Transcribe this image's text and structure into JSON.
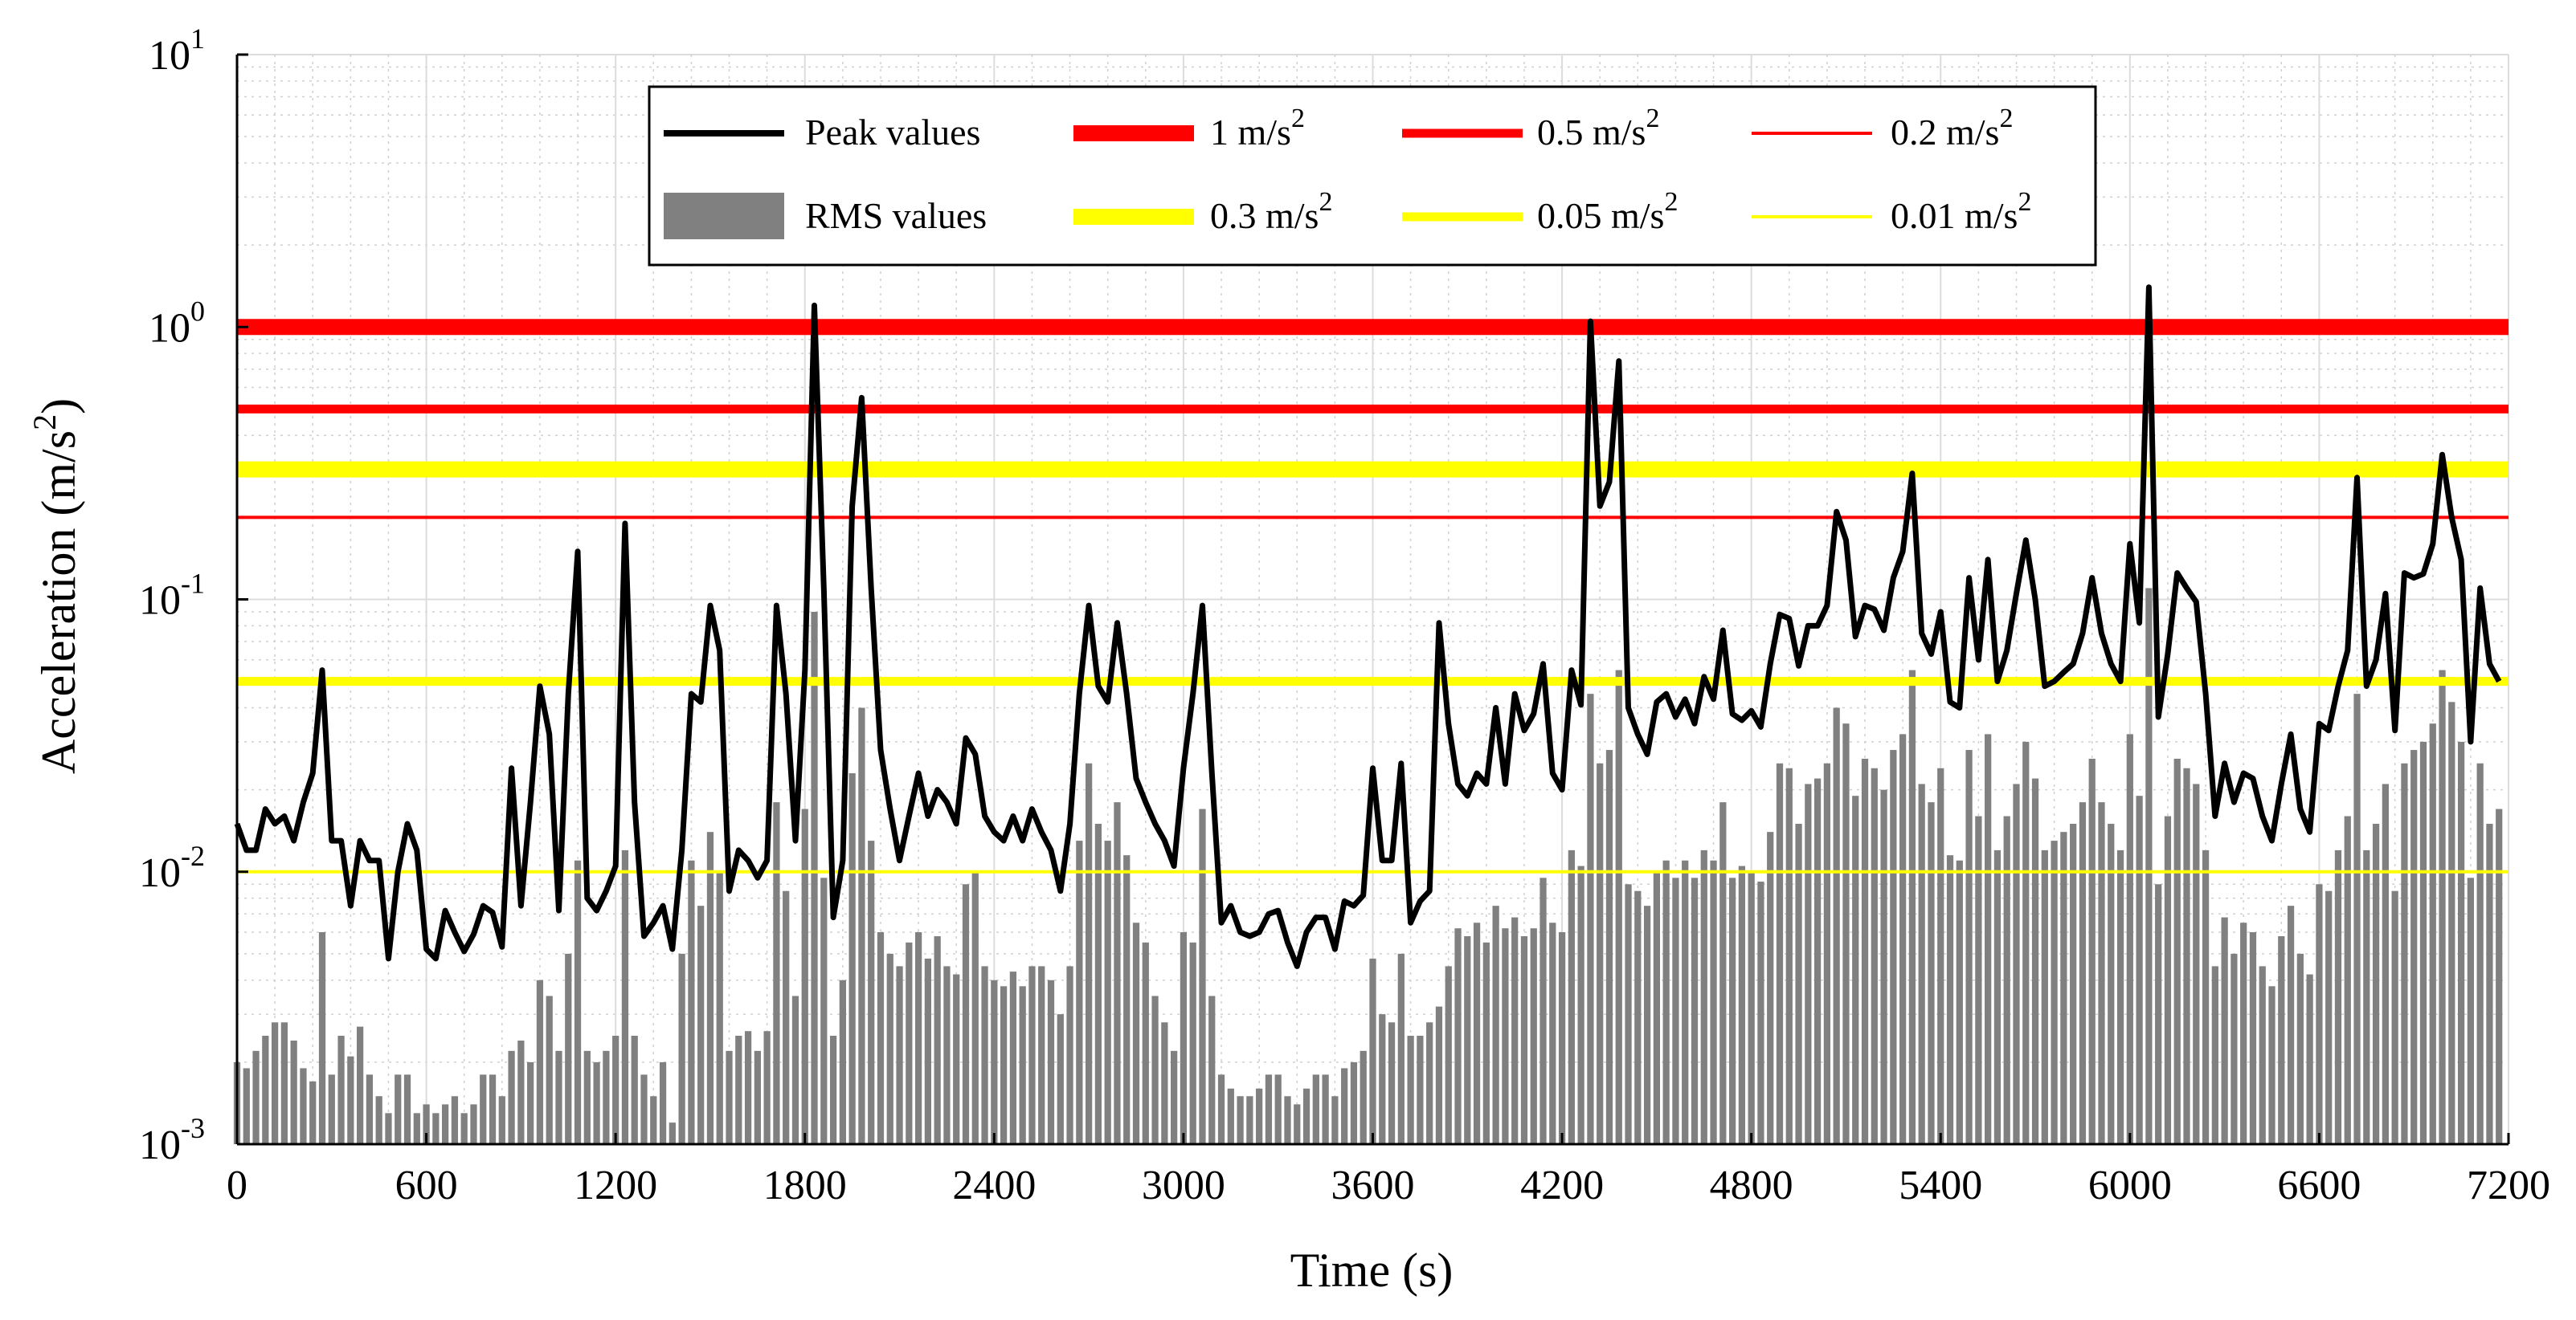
{
  "chart_data": {
    "type": "bar+line",
    "xlabel": "Time (s)",
    "ylabel": "Acceleration (m/s",
    "ylabel_sup": "2",
    "ylabel_close": ")",
    "xlim": [
      0,
      7200
    ],
    "ylim": [
      0.001,
      10
    ],
    "yscale": "log",
    "grid": true,
    "legend_position": "top",
    "x_ticks": [
      "0",
      "600",
      "1200",
      "1800",
      "2400",
      "3000",
      "3600",
      "4200",
      "4800",
      "5400",
      "6000",
      "6600",
      "7200"
    ],
    "y_ticks": [
      {
        "base": "10",
        "exp": "-3"
      },
      {
        "base": "10",
        "exp": "-2"
      },
      {
        "base": "10",
        "exp": "-1"
      },
      {
        "base": "10",
        "exp": "0"
      },
      {
        "base": "10",
        "exp": "1"
      }
    ],
    "thresholds": [
      {
        "name": "1 m/s",
        "sup": "2",
        "value": 1.0,
        "color": "#ff0000",
        "weight": "thick"
      },
      {
        "name": "0.5 m/s",
        "sup": "2",
        "value": 0.5,
        "color": "#ff0000",
        "weight": "medium"
      },
      {
        "name": "0.2 m/s",
        "sup": "2",
        "value": 0.2,
        "color": "#ff0000",
        "weight": "thin"
      },
      {
        "name": "0.3 m/s",
        "sup": "2",
        "value": 0.3,
        "color": "#ffff00",
        "weight": "thick"
      },
      {
        "name": "0.05 m/s",
        "sup": "2",
        "value": 0.05,
        "color": "#ffff00",
        "weight": "medium"
      },
      {
        "name": "0.01 m/s",
        "sup": "2",
        "value": 0.01,
        "color": "#ffff00",
        "weight": "thin"
      }
    ],
    "series": [
      {
        "name": "Peak values",
        "kind": "line",
        "color": "#000000",
        "x_start": 0,
        "x_step": 30,
        "values": [
          0.015,
          0.012,
          0.012,
          0.017,
          0.015,
          0.016,
          0.013,
          0.018,
          0.023,
          0.055,
          0.013,
          0.013,
          0.0075,
          0.013,
          0.011,
          0.011,
          0.0048,
          0.01,
          0.015,
          0.012,
          0.0052,
          0.0048,
          0.0072,
          0.006,
          0.0051,
          0.0059,
          0.0075,
          0.0071,
          0.0053,
          0.024,
          0.0075,
          0.018,
          0.048,
          0.032,
          0.0072,
          0.045,
          0.15,
          0.008,
          0.0072,
          0.0085,
          0.0105,
          0.19,
          0.018,
          0.0058,
          0.0065,
          0.0075,
          0.0052,
          0.012,
          0.045,
          0.042,
          0.095,
          0.065,
          0.0085,
          0.012,
          0.011,
          0.0095,
          0.011,
          0.095,
          0.045,
          0.013,
          0.055,
          1.2,
          0.11,
          0.0068,
          0.011,
          0.22,
          0.55,
          0.11,
          0.028,
          0.017,
          0.011,
          0.016,
          0.023,
          0.016,
          0.02,
          0.018,
          0.015,
          0.031,
          0.027,
          0.016,
          0.014,
          0.013,
          0.016,
          0.013,
          0.017,
          0.014,
          0.012,
          0.0085,
          0.015,
          0.045,
          0.095,
          0.048,
          0.042,
          0.082,
          0.045,
          0.022,
          0.018,
          0.015,
          0.013,
          0.0105,
          0.024,
          0.045,
          0.095,
          0.023,
          0.0065,
          0.0075,
          0.006,
          0.0058,
          0.006,
          0.007,
          0.0072,
          0.0055,
          0.0045,
          0.006,
          0.0068,
          0.0068,
          0.0052,
          0.0078,
          0.0075,
          0.0082,
          0.024,
          0.011,
          0.011,
          0.025,
          0.0065,
          0.0078,
          0.0085,
          0.082,
          0.035,
          0.021,
          0.019,
          0.023,
          0.021,
          0.04,
          0.021,
          0.045,
          0.033,
          0.038,
          0.058,
          0.023,
          0.02,
          0.055,
          0.041,
          1.05,
          0.22,
          0.27,
          0.75,
          0.04,
          0.032,
          0.027,
          0.042,
          0.045,
          0.037,
          0.043,
          0.035,
          0.052,
          0.043,
          0.077,
          0.038,
          0.036,
          0.039,
          0.034,
          0.058,
          0.088,
          0.085,
          0.057,
          0.08,
          0.08,
          0.095,
          0.21,
          0.165,
          0.073,
          0.095,
          0.092,
          0.077,
          0.12,
          0.15,
          0.29,
          0.075,
          0.063,
          0.09,
          0.042,
          0.04,
          0.12,
          0.06,
          0.14,
          0.05,
          0.065,
          0.105,
          0.165,
          0.1,
          0.048,
          0.05,
          0.054,
          0.058,
          0.075,
          0.12,
          0.075,
          0.058,
          0.05,
          0.16,
          0.082,
          1.4,
          0.037,
          0.063,
          0.125,
          0.11,
          0.098,
          0.045,
          0.016,
          0.025,
          0.018,
          0.023,
          0.022,
          0.016,
          0.013,
          0.021,
          0.032,
          0.017,
          0.014,
          0.035,
          0.033,
          0.048,
          0.065,
          0.28,
          0.048,
          0.06,
          0.105,
          0.033,
          0.125,
          0.12,
          0.124,
          0.16,
          0.34,
          0.2,
          0.14,
          0.03,
          0.11,
          0.058,
          0.05
        ]
      },
      {
        "name": "RMS values",
        "kind": "bar",
        "color": "#808080",
        "x_start": 0,
        "x_step": 30,
        "values": [
          0.002,
          0.0019,
          0.0022,
          0.0025,
          0.0028,
          0.0028,
          0.0024,
          0.0019,
          0.0017,
          0.006,
          0.0018,
          0.0025,
          0.0021,
          0.0027,
          0.0018,
          0.0015,
          0.0013,
          0.0018,
          0.0018,
          0.0013,
          0.0014,
          0.0013,
          0.0014,
          0.0015,
          0.0013,
          0.0014,
          0.0018,
          0.0018,
          0.0015,
          0.0022,
          0.0024,
          0.002,
          0.004,
          0.0035,
          0.0022,
          0.005,
          0.011,
          0.0022,
          0.002,
          0.0022,
          0.0025,
          0.012,
          0.0025,
          0.0018,
          0.0015,
          0.002,
          0.0012,
          0.005,
          0.011,
          0.0075,
          0.014,
          0.01,
          0.0022,
          0.0025,
          0.0026,
          0.0022,
          0.0026,
          0.018,
          0.0085,
          0.0035,
          0.017,
          0.09,
          0.0095,
          0.0025,
          0.004,
          0.023,
          0.04,
          0.013,
          0.006,
          0.005,
          0.0045,
          0.0055,
          0.006,
          0.0048,
          0.0058,
          0.0045,
          0.0042,
          0.009,
          0.01,
          0.0045,
          0.004,
          0.0038,
          0.0043,
          0.0038,
          0.0045,
          0.0045,
          0.004,
          0.003,
          0.0045,
          0.013,
          0.025,
          0.015,
          0.013,
          0.018,
          0.0115,
          0.0065,
          0.0055,
          0.0035,
          0.0028,
          0.0022,
          0.006,
          0.0055,
          0.017,
          0.0035,
          0.0018,
          0.0016,
          0.0015,
          0.0015,
          0.0016,
          0.0018,
          0.0018,
          0.0015,
          0.0014,
          0.0016,
          0.0018,
          0.0018,
          0.0015,
          0.0019,
          0.002,
          0.0022,
          0.0048,
          0.003,
          0.0028,
          0.005,
          0.0025,
          0.0025,
          0.0028,
          0.0032,
          0.0045,
          0.0062,
          0.0058,
          0.0065,
          0.0055,
          0.0075,
          0.0062,
          0.0068,
          0.0058,
          0.0062,
          0.0095,
          0.0065,
          0.006,
          0.012,
          0.0105,
          0.045,
          0.025,
          0.028,
          0.055,
          0.009,
          0.0085,
          0.0075,
          0.01,
          0.011,
          0.0095,
          0.011,
          0.0095,
          0.012,
          0.011,
          0.018,
          0.0095,
          0.0105,
          0.01,
          0.0092,
          0.014,
          0.025,
          0.024,
          0.015,
          0.021,
          0.022,
          0.025,
          0.04,
          0.035,
          0.019,
          0.026,
          0.024,
          0.02,
          0.028,
          0.032,
          0.055,
          0.021,
          0.018,
          0.024,
          0.0115,
          0.011,
          0.028,
          0.016,
          0.032,
          0.012,
          0.016,
          0.021,
          0.03,
          0.022,
          0.012,
          0.013,
          0.014,
          0.015,
          0.018,
          0.026,
          0.018,
          0.015,
          0.012,
          0.032,
          0.019,
          0.11,
          0.009,
          0.016,
          0.026,
          0.024,
          0.021,
          0.012,
          0.0045,
          0.0068,
          0.005,
          0.0065,
          0.006,
          0.0045,
          0.0038,
          0.0058,
          0.0075,
          0.005,
          0.0042,
          0.009,
          0.0085,
          0.012,
          0.016,
          0.045,
          0.012,
          0.015,
          0.021,
          0.0085,
          0.025,
          0.028,
          0.03,
          0.035,
          0.055,
          0.042,
          0.03,
          0.0095,
          0.025,
          0.015,
          0.017
        ]
      }
    ],
    "legend": [
      {
        "label": "Peak values",
        "sup": "",
        "ref": "line",
        "color": "#000000"
      },
      {
        "label": "1 m/s",
        "sup": "2",
        "ref": "threshold",
        "color": "#ff0000"
      },
      {
        "label": "0.5 m/s",
        "sup": "2",
        "ref": "threshold",
        "color": "#ff0000"
      },
      {
        "label": "0.2 m/s",
        "sup": "2",
        "ref": "threshold",
        "color": "#ff0000"
      },
      {
        "label": "RMS values",
        "sup": "",
        "ref": "bar",
        "color": "#808080"
      },
      {
        "label": "0.3 m/s",
        "sup": "2",
        "ref": "threshold",
        "color": "#ffff00"
      },
      {
        "label": "0.05 m/s",
        "sup": "2",
        "ref": "threshold",
        "color": "#ffff00"
      },
      {
        "label": "0.01 m/s",
        "sup": "2",
        "ref": "threshold",
        "color": "#ffff00"
      }
    ]
  }
}
